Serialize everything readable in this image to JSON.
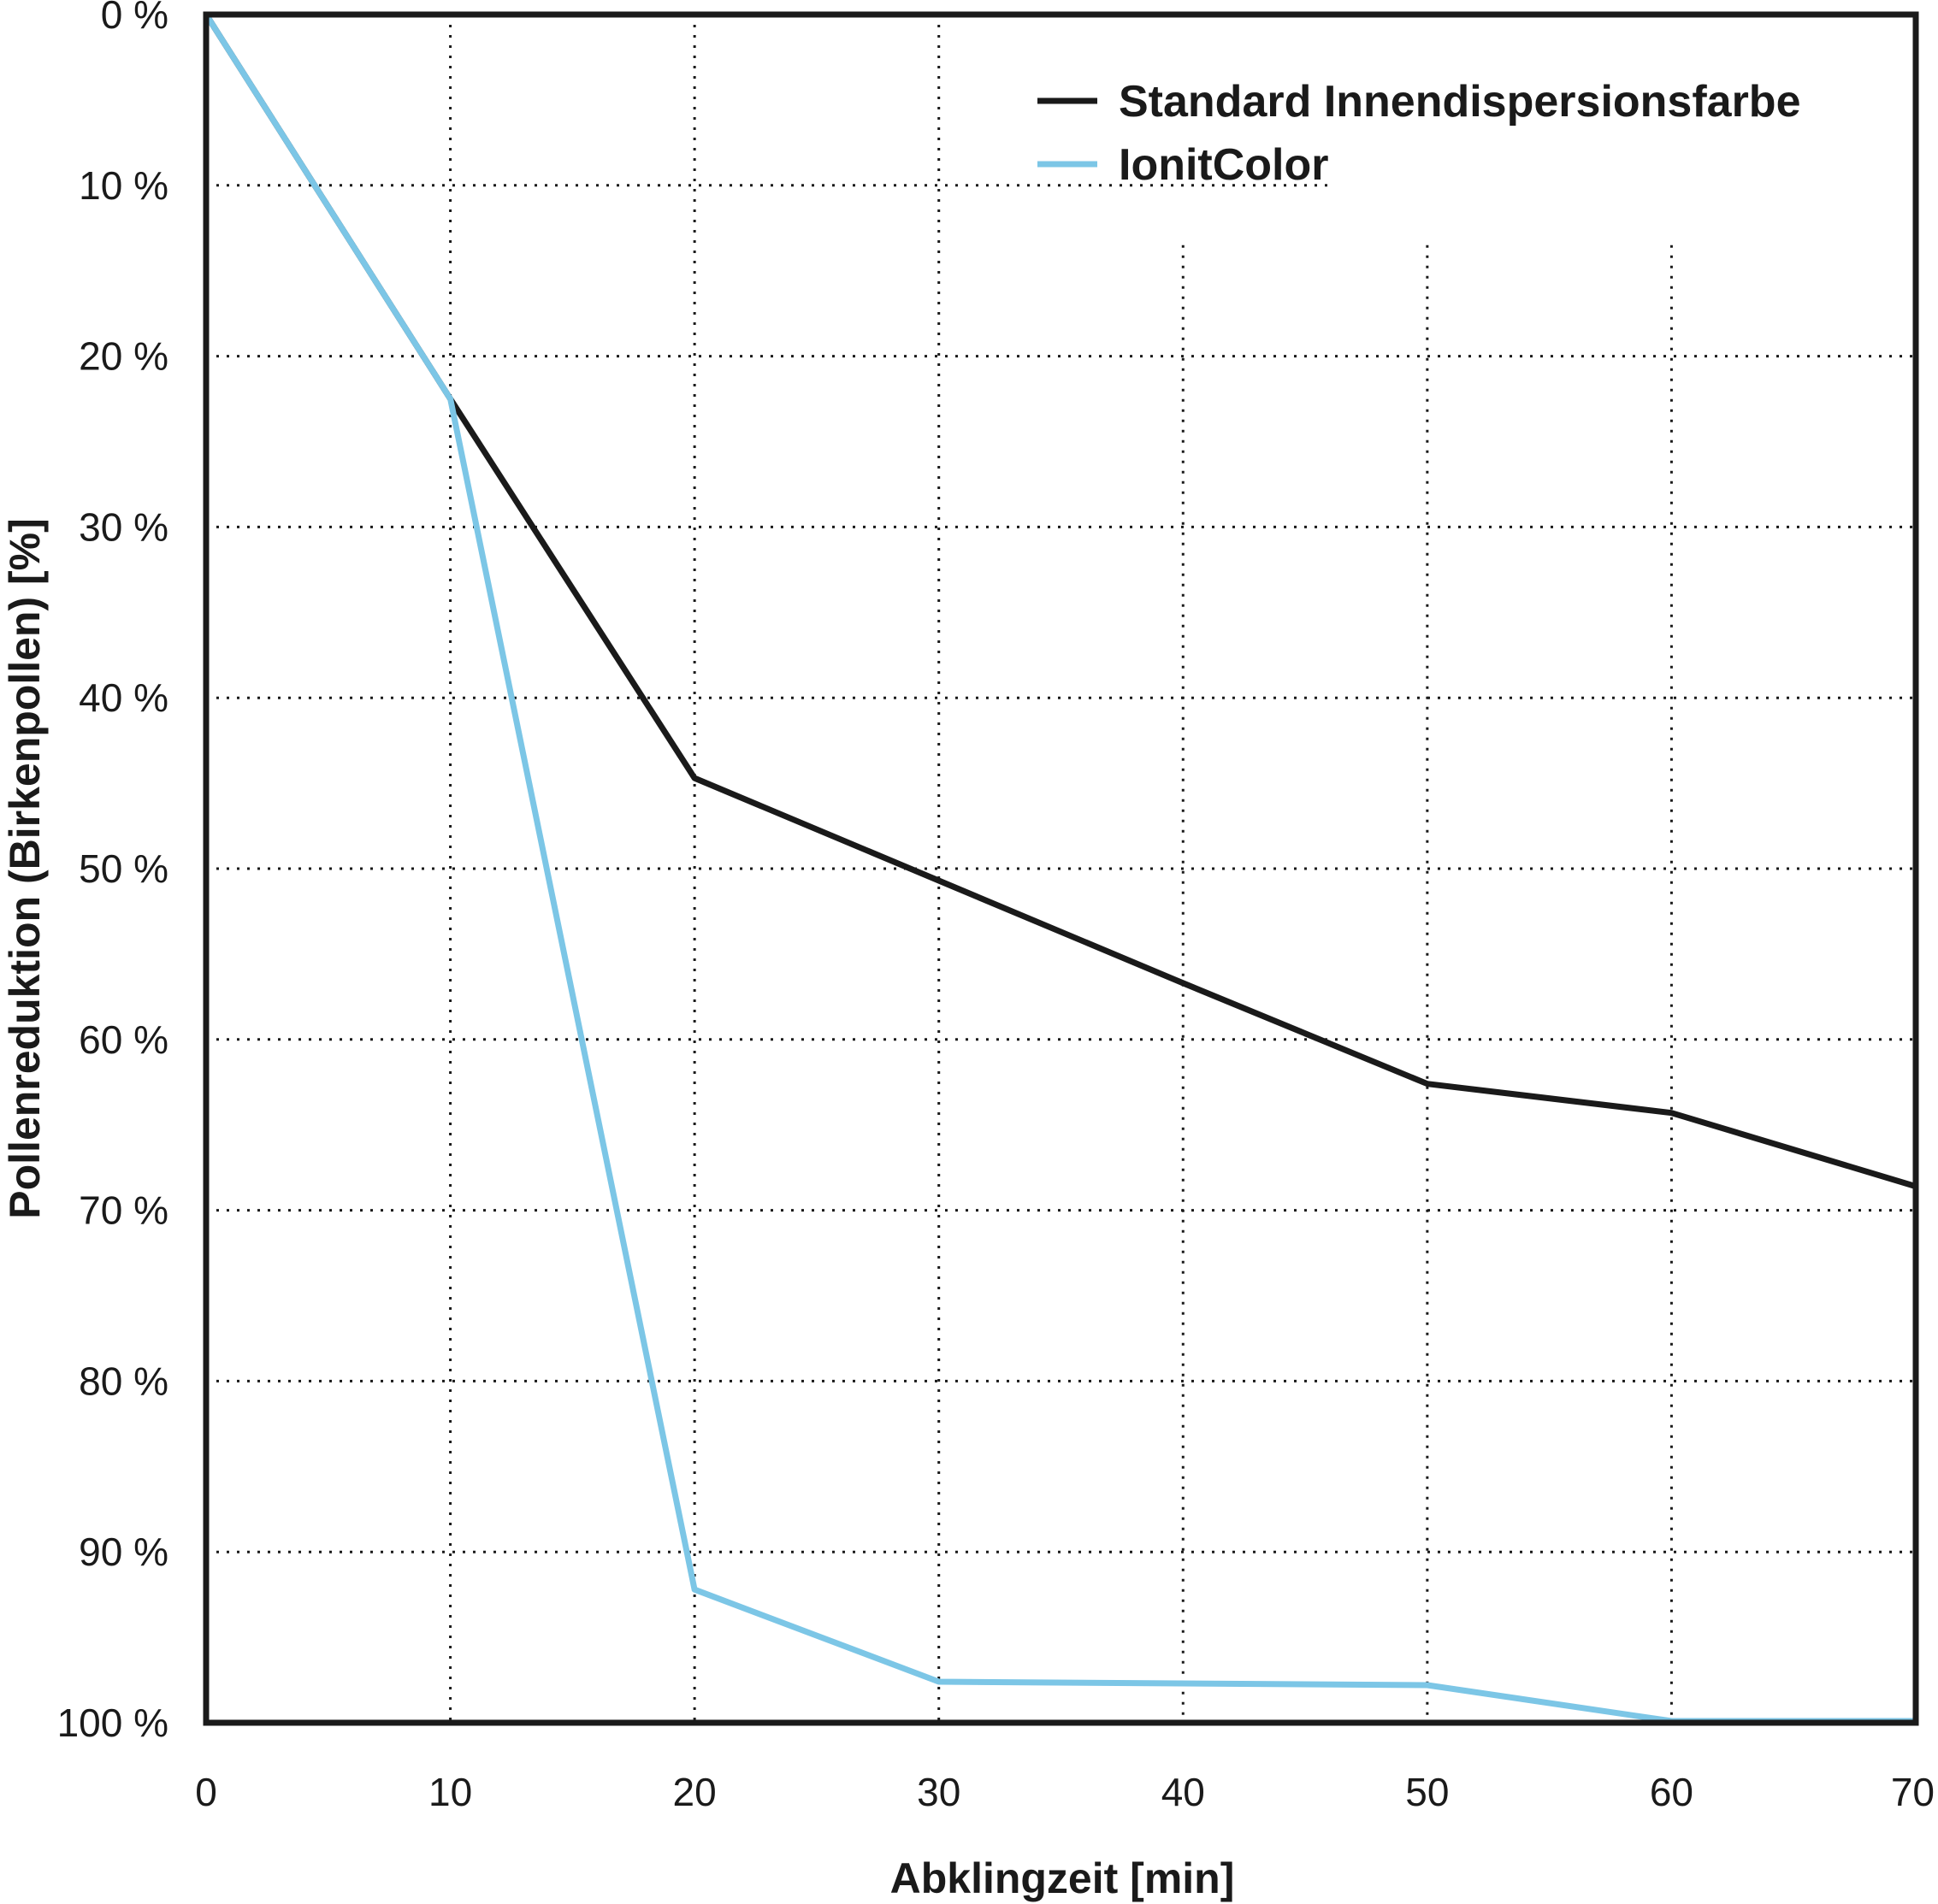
{
  "chart_data": {
    "type": "line",
    "xlabel": "Abklingzeit [min]",
    "ylabel": "Pollenreduktion (Birkenpollen) [%]",
    "xlim": [
      0,
      70
    ],
    "ylim": [
      0,
      100
    ],
    "y_inverted": true,
    "grid": true,
    "legend_position": "top-right",
    "x_ticks": [
      "0",
      "10",
      "20",
      "30",
      "40",
      "50",
      "60",
      "70"
    ],
    "y_ticks": [
      "0 %",
      "10 %",
      "20 %",
      "30 %",
      "40 %",
      "50 %",
      "60 %",
      "70 %",
      "80 %",
      "90 %",
      "100 %"
    ],
    "series": [
      {
        "name": "Standard Innendispersionsfarbe",
        "color": "#1a1a1a",
        "x": [
          0,
          10,
          20,
          30,
          40,
          50,
          60,
          70
        ],
        "y": [
          0,
          22.5,
          44.7,
          50.7,
          56.7,
          62.6,
          64.3,
          68.6
        ]
      },
      {
        "name": "IonitColor",
        "color": "#7cc6e6",
        "x": [
          0,
          10,
          20,
          30,
          50,
          60,
          70
        ],
        "y": [
          0,
          22.5,
          92.2,
          97.6,
          97.8,
          99.9,
          99.9
        ]
      }
    ]
  }
}
